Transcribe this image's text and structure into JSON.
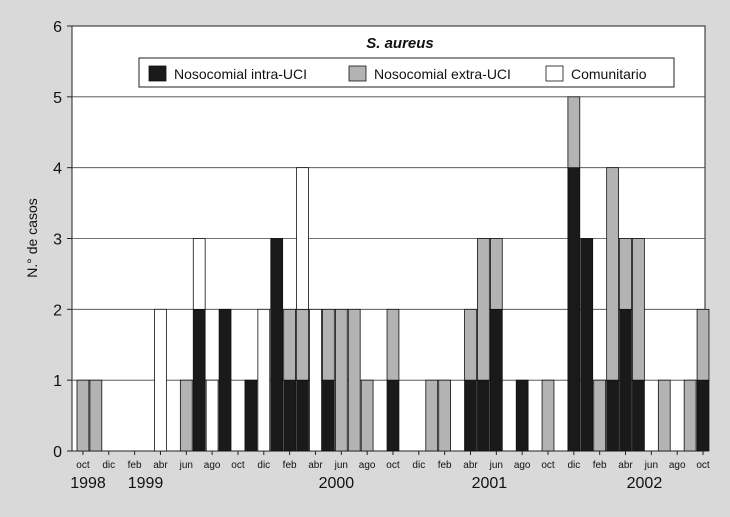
{
  "chart_data": {
    "type": "bar",
    "stacked": true,
    "title": "S. aureus",
    "xlabel": "",
    "ylabel": "N.° de casos",
    "ylim": [
      0,
      6
    ],
    "yticks": [
      0,
      1,
      2,
      3,
      4,
      5,
      6
    ],
    "grid": true,
    "legend_position": "top",
    "months": [
      "oct 1998",
      "nov 1998",
      "dic 1998",
      "ene 1999",
      "feb 1999",
      "mar 1999",
      "abr 1999",
      "may 1999",
      "jun 1999",
      "jul 1999",
      "ago 1999",
      "sep 1999",
      "oct 1999",
      "nov 1999",
      "dic 1999",
      "ene 2000",
      "feb 2000",
      "mar 2000",
      "abr 2000",
      "may 2000",
      "jun 2000",
      "jul 2000",
      "ago 2000",
      "sep 2000",
      "oct 2000",
      "nov 2000",
      "dic 2000",
      "ene 2001",
      "feb 2001",
      "mar 2001",
      "abr 2001",
      "may 2001",
      "jun 2001",
      "jul 2001",
      "ago 2001",
      "sep 2001",
      "oct 2001",
      "nov 2001",
      "dic 2001",
      "ene 2002",
      "feb 2002",
      "mar 2002",
      "abr 2002",
      "may 2002",
      "jun 2002",
      "jul 2002",
      "ago 2002",
      "sep 2002",
      "oct 2002"
    ],
    "month_tick_labels": [
      "oct",
      "dic",
      "feb",
      "abr",
      "jun",
      "ago",
      "oct",
      "dic",
      "feb",
      "abr",
      "jun",
      "ago",
      "oct",
      "dic",
      "feb",
      "abr",
      "jun",
      "ago",
      "oct",
      "dic",
      "feb",
      "abr",
      "jun",
      "ago",
      "oct"
    ],
    "year_labels": [
      "1998",
      "1999",
      "2000",
      "2001",
      "2002"
    ],
    "series": [
      {
        "name": "Nosocomial intra-UCI",
        "color": "#1a1a1a",
        "values": [
          0,
          0,
          0,
          0,
          0,
          0,
          0,
          0,
          0,
          2,
          0,
          2,
          0,
          1,
          0,
          3,
          1,
          1,
          0,
          1,
          0,
          0,
          0,
          0,
          1,
          0,
          0,
          0,
          0,
          0,
          1,
          1,
          2,
          0,
          1,
          0,
          0,
          0,
          4,
          3,
          0,
          1,
          2,
          1,
          0,
          0,
          0,
          0,
          1
        ]
      },
      {
        "name": "Nosocomial extra-UCI",
        "color": "#b3b3b3",
        "values": [
          1,
          1,
          0,
          0,
          0,
          0,
          0,
          0,
          1,
          0,
          0,
          0,
          0,
          0,
          0,
          0,
          1,
          1,
          0,
          1,
          2,
          2,
          1,
          0,
          1,
          0,
          0,
          1,
          1,
          0,
          1,
          2,
          1,
          0,
          0,
          0,
          1,
          0,
          1,
          0,
          1,
          3,
          1,
          2,
          0,
          1,
          0,
          1,
          1
        ]
      },
      {
        "name": "Comunitario",
        "color": "#ffffff",
        "values": [
          0,
          0,
          0,
          0,
          0,
          0,
          2,
          0,
          0,
          1,
          1,
          0,
          0,
          0,
          2,
          0,
          0,
          2,
          2,
          0,
          0,
          0,
          0,
          0,
          0,
          0,
          0,
          0,
          0,
          0,
          0,
          0,
          0,
          0,
          0,
          0,
          0,
          0,
          0,
          0,
          0,
          0,
          0,
          0,
          0,
          0,
          0,
          0,
          0
        ]
      }
    ]
  }
}
